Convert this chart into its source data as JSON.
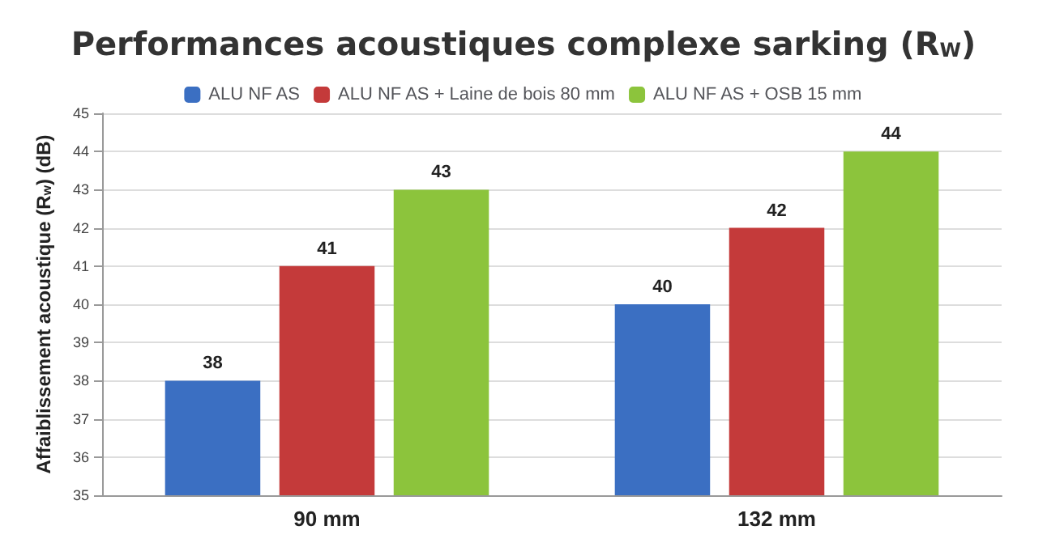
{
  "chart_data": {
    "type": "bar",
    "title": "Performances acoustiques complexe sarking (R$_{W}$)",
    "ylabel": "Affaiblissement acoustique (R$_{w}$) (dB)",
    "categories": [
      "90 mm",
      "132 mm"
    ],
    "series": [
      {
        "name": "ALU NF AS",
        "color": "#3b6fc2",
        "values": [
          38,
          40
        ]
      },
      {
        "name": "ALU NF AS + Laine de bois 80 mm",
        "color": "#c43a3a",
        "values": [
          41,
          42
        ]
      },
      {
        "name": "ALU NF AS + OSB 15 mm",
        "color": "#8cc43c",
        "values": [
          43,
          44
        ]
      }
    ],
    "ylim": [
      35,
      45
    ],
    "yticks": [
      35,
      36,
      37,
      38,
      39,
      40,
      41,
      42,
      43,
      44,
      45
    ],
    "grid": "y",
    "legend": "top",
    "data_labels": true
  }
}
